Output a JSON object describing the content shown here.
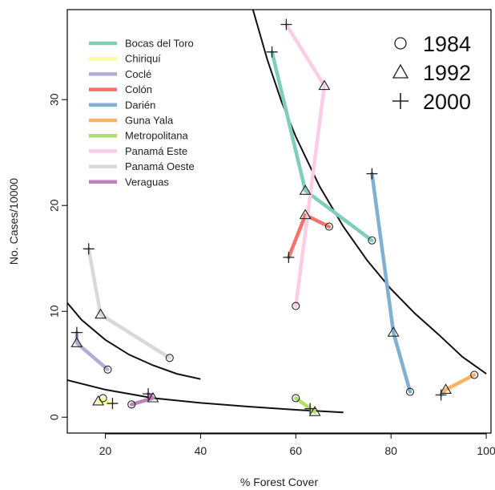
{
  "chart_data": {
    "type": "line",
    "xlabel": "% Forest Cover",
    "ylabel": "No. Cases/10000",
    "xlim": [
      12,
      101
    ],
    "ylim": [
      -1.5,
      38.5
    ],
    "x_ticks": [
      "20",
      "40",
      "60",
      "80",
      "100"
    ],
    "x_tick_values": [
      20,
      40,
      60,
      80,
      100
    ],
    "y_ticks": [
      "0",
      "10",
      "20",
      "30"
    ],
    "y_tick_values": [
      0,
      10,
      20,
      30
    ],
    "grid": false,
    "region_legend": "top-left",
    "year_legend": "top-right",
    "years": [
      {
        "label": "1984",
        "marker": "circle"
      },
      {
        "label": "1992",
        "marker": "triangle"
      },
      {
        "label": "2000",
        "marker": "plus"
      }
    ],
    "series": [
      {
        "name": "Bocas del Toro",
        "color": "#7fcdbb",
        "points": [
          [
            76,
            16.7
          ],
          [
            62,
            21.4
          ],
          [
            55,
            34.5
          ]
        ]
      },
      {
        "name": "Chiriquí",
        "color": "#ffff99",
        "points": [
          [
            19.5,
            1.8
          ],
          [
            18.5,
            1.5
          ],
          [
            21.5,
            1.3
          ]
        ]
      },
      {
        "name": "Coclé",
        "color": "#b3acd6",
        "points": [
          [
            20.5,
            4.5
          ],
          [
            14,
            7.0
          ],
          [
            14,
            8.0
          ]
        ]
      },
      {
        "name": "Colón",
        "color": "#f4736a",
        "points": [
          [
            67,
            18
          ],
          [
            62,
            19.1
          ],
          [
            58.5,
            15.1
          ]
        ]
      },
      {
        "name": "Darién",
        "color": "#80b1d3",
        "points": [
          [
            84,
            2.4
          ],
          [
            80.5,
            8.0
          ],
          [
            76,
            23
          ]
        ]
      },
      {
        "name": "Guna Yala",
        "color": "#fdb462",
        "points": [
          [
            97.5,
            4.0
          ],
          [
            91.5,
            2.6
          ],
          [
            90.5,
            2.1
          ]
        ]
      },
      {
        "name": "Metropolitana",
        "color": "#b3de69",
        "points": [
          [
            60,
            1.8
          ],
          [
            64,
            0.5
          ],
          [
            63,
            0.8
          ]
        ]
      },
      {
        "name": "Panamá Este",
        "color": "#fccde5",
        "points": [
          [
            60,
            10.5
          ],
          [
            66,
            31.3
          ],
          [
            58,
            37.1
          ]
        ]
      },
      {
        "name": "Panamá Oeste",
        "color": "#d9d9d9",
        "points": [
          [
            33.5,
            5.6
          ],
          [
            19,
            9.7
          ],
          [
            16.5,
            15.9
          ]
        ]
      },
      {
        "name": "Veraguas",
        "color": "#bc80bd",
        "points": [
          [
            25.5,
            1.2
          ],
          [
            30,
            1.8
          ],
          [
            29,
            2.2
          ]
        ]
      }
    ],
    "fitted_curves": [
      {
        "points": [
          [
            12,
            10.8
          ],
          [
            15,
            9.2
          ],
          [
            20,
            7.3
          ],
          [
            25,
            5.9
          ],
          [
            30,
            4.9
          ],
          [
            35,
            4.1
          ],
          [
            40,
            3.6
          ]
        ]
      },
      {
        "points": [
          [
            12,
            3.5
          ],
          [
            20,
            2.6
          ],
          [
            30,
            1.8
          ],
          [
            40,
            1.35
          ],
          [
            50,
            1.0
          ],
          [
            60,
            0.7
          ],
          [
            70,
            0.45
          ]
        ]
      },
      {
        "points": [
          [
            51,
            38.5
          ],
          [
            54,
            33.8
          ],
          [
            57,
            29.8
          ],
          [
            60,
            26.5
          ],
          [
            65,
            21.8
          ],
          [
            70,
            18.0
          ],
          [
            75,
            14.8
          ],
          [
            80,
            12.1
          ],
          [
            85,
            9.8
          ],
          [
            90,
            7.8
          ],
          [
            95,
            5.7
          ],
          [
            100,
            4.1
          ]
        ]
      }
    ]
  }
}
